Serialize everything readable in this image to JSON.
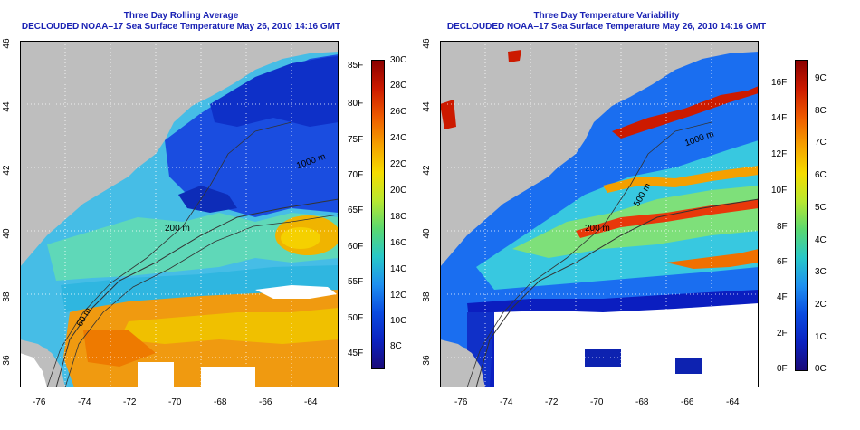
{
  "left": {
    "title1": "Three Day Rolling Average",
    "title2": "DECLOUDED NOAA–17 Sea Surface Temperature May 26, 2010 14:16 GMT",
    "xticks": [
      "-76",
      "-74",
      "-72",
      "-70",
      "-68",
      "-66",
      "-64"
    ],
    "yticks": [
      "46",
      "44",
      "42",
      "40",
      "38",
      "36"
    ],
    "contours": [
      "200 m",
      "1000 m",
      "60 m"
    ],
    "scale_f": [
      "85F",
      "80F",
      "75F",
      "70F",
      "65F",
      "60F",
      "55F",
      "50F",
      "45F"
    ],
    "scale_c": [
      "30C",
      "28C",
      "26C",
      "24C",
      "22C",
      "20C",
      "18C",
      "16C",
      "14C",
      "12C",
      "10C",
      "8C"
    ],
    "colormap": [
      "#8b0000",
      "#cc1a00",
      "#ee5a00",
      "#f5a000",
      "#f5dc00",
      "#b8e830",
      "#5ad870",
      "#28c8c8",
      "#1e90f0",
      "#0a4be0",
      "#0b22c0",
      "#1a0a78"
    ]
  },
  "right": {
    "title1": "Three Day Temperature Variability",
    "title2": "DECLOUDED NOAA–17 Sea Surface Temperature May 26, 2010 14:16 GMT",
    "xticks": [
      "-76",
      "-74",
      "-72",
      "-70",
      "-68",
      "-66",
      "-64"
    ],
    "yticks": [
      "46",
      "44",
      "42",
      "40",
      "38",
      "36"
    ],
    "contours": [
      "200 m",
      "500 m",
      "1000 m"
    ],
    "scale_f": [
      "16F",
      "14F",
      "12F",
      "10F",
      "8F",
      "6F",
      "4F",
      "2F",
      "0F"
    ],
    "scale_c": [
      "9C",
      "8C",
      "7C",
      "6C",
      "5C",
      "4C",
      "3C",
      "2C",
      "1C",
      "0C"
    ],
    "colormap": [
      "#8b0000",
      "#cc1a00",
      "#ee5a00",
      "#f5a000",
      "#f5dc00",
      "#b8e830",
      "#5ad870",
      "#28c8c8",
      "#1e90f0",
      "#0a4be0",
      "#0b22c0",
      "#1a0a78"
    ]
  }
}
